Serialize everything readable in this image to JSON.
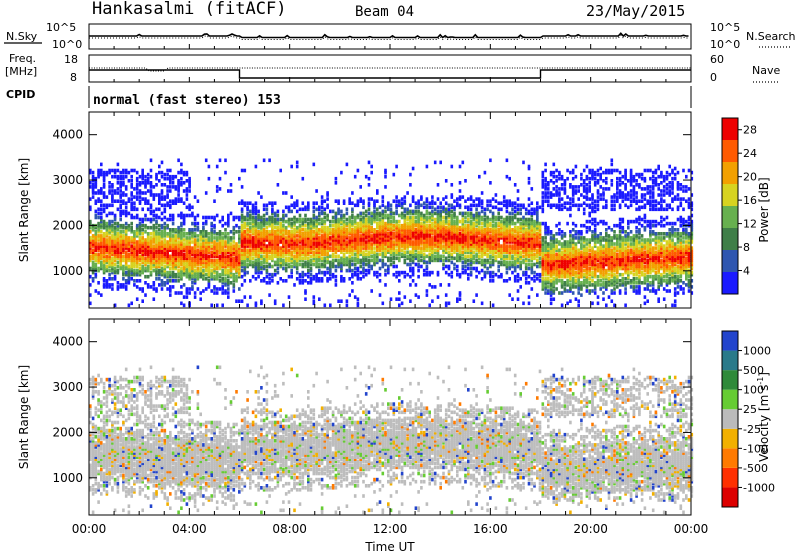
{
  "header": {
    "station": "Hankasalmi (fitACF)",
    "beam": "Beam 04",
    "date": "23/May/2015"
  },
  "top_panels": {
    "nsky_label": "N.Sky",
    "nsearch_label": "N.Search",
    "noise_ticks_left": [
      "10^5",
      "10^0"
    ],
    "noise_ticks_right": [
      "10^5",
      "10^0"
    ],
    "freq_label_1": "Freq.",
    "freq_label_2": "[MHz]",
    "freq_ticks": [
      "18",
      "8"
    ],
    "nave_label": "Nave",
    "nave_ticks": [
      "60",
      "0"
    ],
    "cpid_label": "CPID",
    "cpid_text": "normal (fast stereo) 153"
  },
  "chart_data": [
    {
      "type": "heatmap",
      "panel": "power",
      "title": "",
      "xlabel": "Time UT",
      "ylabel": "Slant Range [km]",
      "x_ticks": [
        "00:00",
        "04:00",
        "08:00",
        "12:00",
        "16:00",
        "20:00",
        "00:00"
      ],
      "xlim_hours": [
        0,
        24
      ],
      "y_ticks": [
        1000,
        2000,
        3000,
        4000
      ],
      "ylim": [
        180,
        4500
      ],
      "colorbar": {
        "label": "Power [dB]",
        "ticks": [
          4,
          8,
          12,
          16,
          20,
          24,
          28
        ],
        "range": [
          0,
          30
        ],
        "colors": [
          "#1a1aff",
          "#2f56b0",
          "#3f7e48",
          "#67b04f",
          "#d7d320",
          "#f2a000",
          "#ff5a00",
          "#ee0000"
        ]
      }
    },
    {
      "type": "heatmap",
      "panel": "velocity",
      "title": "",
      "xlabel": "Time UT",
      "ylabel": "Slant Range [km]",
      "x_ticks": [
        "00:00",
        "04:00",
        "08:00",
        "12:00",
        "16:00",
        "20:00",
        "00:00"
      ],
      "xlim_hours": [
        0,
        24
      ],
      "y_ticks": [
        1000,
        2000,
        3000,
        4000
      ],
      "ylim": [
        180,
        4500
      ],
      "colorbar": {
        "label": "Velocity [m s^-1]",
        "ticks": [
          "1000",
          "500",
          "100",
          "25",
          "-25",
          "-100",
          "-500",
          "-1000"
        ],
        "colors": [
          "#2244cc",
          "#2a7a8a",
          "#2f8a3a",
          "#66cc33",
          "#bbbbbb",
          "#f2b000",
          "#ff7a00",
          "#ff3000",
          "#dd0000"
        ]
      }
    }
  ]
}
